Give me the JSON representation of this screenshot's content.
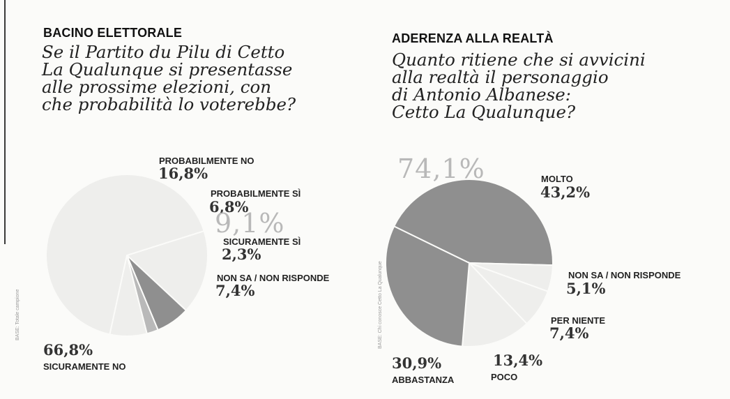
{
  "colors": {
    "dark": "#8f8f8f",
    "light": "#eeeeec",
    "mid": "#b9b9b9",
    "background": "#fbfbf9"
  },
  "chart_data": [
    {
      "type": "pie",
      "heading": "BACINO ELETTORALE",
      "question": [
        "Se il Partito du Pilu di Cetto",
        "La Qualunque si presentasse",
        "alle prossime elezioni, con",
        "che probabilità lo voterebbe?"
      ],
      "group_total": "9,1%",
      "slices": [
        {
          "name": "PROBABILMENTE NO",
          "value": 16.8,
          "label": "16,8%"
        },
        {
          "name": "PROBABILMENTE SÌ",
          "value": 6.8,
          "label": "6,8%"
        },
        {
          "name": "SICURAMENTE SÌ",
          "value": 2.3,
          "label": "2,3%"
        },
        {
          "name": "NON SA / NON RISPONDE",
          "value": 7.4,
          "label": "7,4%"
        },
        {
          "name": "SICURAMENTE NO",
          "value": 66.8,
          "label": "66,8%"
        }
      ],
      "base_note": "BASE: Totale campione"
    },
    {
      "type": "pie",
      "heading": "ADERENZA ALLA REALTÀ",
      "question": [
        "Quanto ritiene che si avvicini",
        "alla realtà il personaggio",
        "di Antonio Albanese:",
        "Cetto La Qualunque?"
      ],
      "group_total": "74,1%",
      "slices": [
        {
          "name": "MOLTO",
          "value": 43.2,
          "label": "43,2%"
        },
        {
          "name": "NON SA / NON RISPONDE",
          "value": 5.1,
          "label": "5,1%"
        },
        {
          "name": "PER NIENTE",
          "value": 7.4,
          "label": "7,4%"
        },
        {
          "name": "POCO",
          "value": 13.4,
          "label": "13,4%"
        },
        {
          "name": "ABBASTANZA",
          "value": 30.9,
          "label": "30,9%"
        }
      ],
      "base_note": "BASE: Chi conosce Cetto La Qualunque"
    }
  ]
}
